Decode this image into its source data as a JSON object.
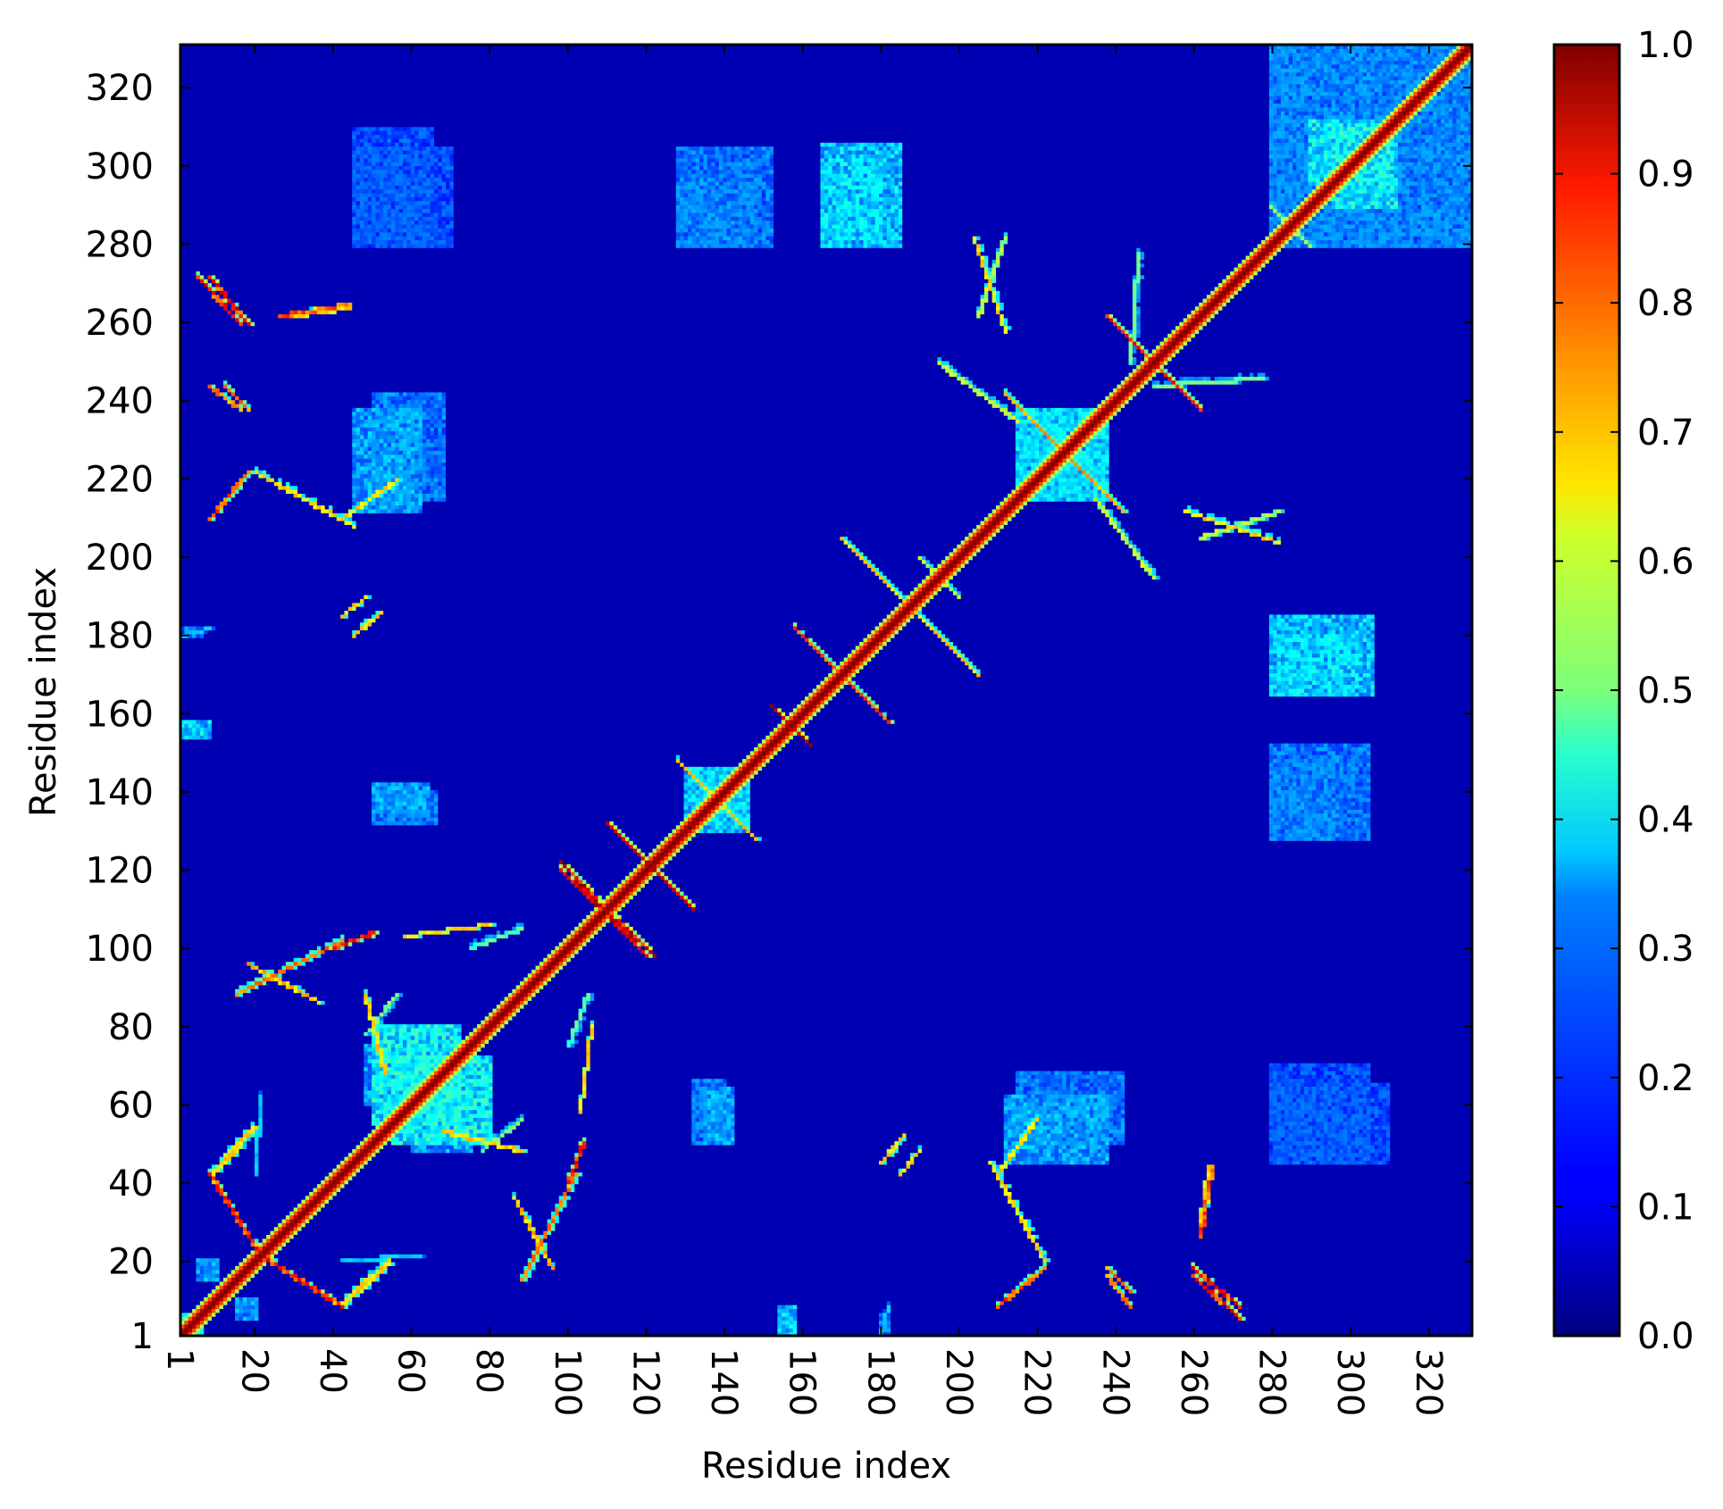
{
  "chart_data": {
    "type": "heatmap",
    "title": "",
    "xlabel": "Residue index",
    "ylabel": "Residue index",
    "n_residues": 331,
    "xlim": [
      1,
      331
    ],
    "ylim": [
      1,
      331
    ],
    "x_ticks": [
      1,
      20,
      40,
      60,
      80,
      100,
      120,
      140,
      160,
      180,
      200,
      220,
      240,
      260,
      280,
      300,
      320
    ],
    "y_ticks": [
      1,
      20,
      40,
      60,
      80,
      100,
      120,
      140,
      160,
      180,
      200,
      220,
      240,
      260,
      280,
      300,
      320
    ],
    "x_tick_rotation": "vertical",
    "colormap": "jet",
    "colorbar": {
      "range": [
        0.0,
        1.0
      ],
      "ticks": [
        "0.0",
        "0.1",
        "0.2",
        "0.3",
        "0.4",
        "0.5",
        "0.6",
        "0.7",
        "0.8",
        "0.9",
        "1.0"
      ],
      "position": "right"
    },
    "symmetric": true,
    "diagonal_value": 1.0,
    "background_value": 0.05,
    "features": [
      {
        "kind": "block",
        "x": [
          1,
          6
        ],
        "y": [
          1,
          6
        ],
        "value": 0.45
      },
      {
        "kind": "block",
        "x": [
          15,
          20
        ],
        "y": [
          5,
          10
        ],
        "value": 0.35
      },
      {
        "kind": "block",
        "x": [
          154,
          158
        ],
        "y": [
          1,
          8
        ],
        "value": 0.3
      },
      {
        "kind": "block",
        "x": [
          180,
          182
        ],
        "y": [
          1,
          6
        ],
        "value": 0.3
      },
      {
        "kind": "band",
        "from": [
          42,
          8
        ],
        "to": [
          54,
          19
        ],
        "value": 0.7
      },
      {
        "kind": "band",
        "from": [
          9,
          42
        ],
        "to": [
          20,
          54
        ],
        "value": 0.7
      },
      {
        "kind": "band",
        "from": [
          20,
          22
        ],
        "to": [
          42,
          8
        ],
        "value": 0.9
      },
      {
        "kind": "band",
        "from": [
          42,
          20
        ],
        "to": [
          62,
          21
        ],
        "value": 0.35
      },
      {
        "kind": "band",
        "from": [
          88,
          15
        ],
        "to": [
          102,
          42
        ],
        "value": 0.8
      },
      {
        "kind": "band",
        "from": [
          15,
          88
        ],
        "to": [
          42,
          102
        ],
        "value": 0.8
      },
      {
        "kind": "block",
        "x": [
          50,
          72
        ],
        "y": [
          55,
          80
        ],
        "value": 0.45
      },
      {
        "kind": "block",
        "x": [
          60,
          75
        ],
        "y": [
          48,
          62
        ],
        "value": 0.35
      },
      {
        "kind": "band",
        "from": [
          68,
          53
        ],
        "to": [
          88,
          48
        ],
        "value": 0.7
      },
      {
        "kind": "band",
        "from": [
          48,
          78
        ],
        "to": [
          56,
          88
        ],
        "value": 0.55
      },
      {
        "kind": "band",
        "from": [
          58,
          103
        ],
        "to": [
          80,
          106
        ],
        "value": 0.7
      },
      {
        "kind": "band",
        "from": [
          40,
          100
        ],
        "to": [
          50,
          104
        ],
        "value": 0.9
      },
      {
        "kind": "band",
        "from": [
          18,
          96
        ],
        "to": [
          36,
          86
        ],
        "value": 0.75
      },
      {
        "kind": "band",
        "from": [
          100,
          75
        ],
        "to": [
          105,
          88
        ],
        "value": 0.5
      },
      {
        "kind": "block",
        "x": [
          132,
          140
        ],
        "y": [
          50,
          64
        ],
        "value": 0.3
      },
      {
        "kind": "block",
        "x": [
          54,
          66
        ],
        "y": [
          132,
          140
        ],
        "value": 0.3
      },
      {
        "kind": "band",
        "from": [
          98,
          122
        ],
        "to": [
          120,
          98
        ],
        "value": 1.0
      },
      {
        "kind": "band",
        "from": [
          110,
          132
        ],
        "to": [
          132,
          110
        ],
        "value": 0.95
      },
      {
        "kind": "band",
        "from": [
          128,
          148
        ],
        "to": [
          148,
          128
        ],
        "value": 0.7
      },
      {
        "kind": "block",
        "x": [
          132,
          146
        ],
        "y": [
          130,
          146
        ],
        "value": 0.4
      },
      {
        "kind": "band",
        "from": [
          152,
          162
        ],
        "to": [
          162,
          152
        ],
        "value": 1.0
      },
      {
        "kind": "band",
        "from": [
          158,
          182
        ],
        "to": [
          182,
          158
        ],
        "value": 0.85
      },
      {
        "kind": "band",
        "from": [
          170,
          205
        ],
        "to": [
          205,
          170
        ],
        "value": 0.7
      },
      {
        "kind": "band",
        "from": [
          190,
          200
        ],
        "to": [
          200,
          190
        ],
        "value": 0.6
      },
      {
        "kind": "block",
        "x": [
          215,
          238
        ],
        "y": [
          215,
          238
        ],
        "value": 0.4
      },
      {
        "kind": "band",
        "from": [
          212,
          242
        ],
        "to": [
          242,
          212
        ],
        "value": 0.75
      },
      {
        "kind": "band",
        "from": [
          195,
          250
        ],
        "to": [
          215,
          235
        ],
        "value": 0.6
      },
      {
        "kind": "band",
        "from": [
          235,
          215
        ],
        "to": [
          250,
          195
        ],
        "value": 0.6
      },
      {
        "kind": "band",
        "from": [
          238,
          262
        ],
        "to": [
          262,
          238
        ],
        "value": 0.9
      },
      {
        "kind": "band",
        "from": [
          250,
          244
        ],
        "to": [
          278,
          246
        ],
        "value": 0.5
      },
      {
        "kind": "band",
        "from": [
          244,
          250
        ],
        "to": [
          246,
          278
        ],
        "value": 0.5
      },
      {
        "kind": "band",
        "from": [
          8,
          272
        ],
        "to": [
          18,
          260
        ],
        "value": 0.95
      },
      {
        "kind": "band",
        "from": [
          8,
          244
        ],
        "to": [
          16,
          238
        ],
        "value": 0.8
      },
      {
        "kind": "band",
        "from": [
          8,
          210
        ],
        "to": [
          18,
          222
        ],
        "value": 0.85
      },
      {
        "kind": "band",
        "from": [
          42,
          210
        ],
        "to": [
          56,
          220
        ],
        "value": 0.7
      },
      {
        "kind": "block",
        "x": [
          50,
          68
        ],
        "y": [
          215,
          242
        ],
        "value": 0.3
      },
      {
        "kind": "band",
        "from": [
          26,
          262
        ],
        "to": [
          44,
          265
        ],
        "value": 0.85
      },
      {
        "kind": "band",
        "from": [
          1,
          180
        ],
        "to": [
          8,
          182
        ],
        "value": 0.35
      },
      {
        "kind": "block",
        "x": [
          1,
          8
        ],
        "y": [
          154,
          158
        ],
        "value": 0.4
      },
      {
        "kind": "block",
        "x": [
          50,
          64
        ],
        "y": [
          135,
          142
        ],
        "value": 0.35
      },
      {
        "kind": "band",
        "from": [
          42,
          185
        ],
        "to": [
          48,
          190
        ],
        "value": 0.7
      },
      {
        "kind": "band",
        "from": [
          208,
          45
        ],
        "to": [
          222,
          20
        ],
        "value": 0.7
      },
      {
        "kind": "block",
        "x": [
          212,
          238
        ],
        "y": [
          45,
          62
        ],
        "value": 0.35
      },
      {
        "kind": "band",
        "from": [
          238,
          18
        ],
        "to": [
          244,
          12
        ],
        "value": 0.85
      },
      {
        "kind": "band",
        "from": [
          260,
          16
        ],
        "to": [
          272,
          5
        ],
        "value": 0.95
      },
      {
        "kind": "band",
        "from": [
          262,
          30
        ],
        "to": [
          264,
          44
        ],
        "value": 0.7
      },
      {
        "kind": "band",
        "from": [
          180,
          45
        ],
        "to": [
          186,
          52
        ],
        "value": 0.7
      },
      {
        "kind": "block",
        "x": [
          128,
          152
        ],
        "y": [
          280,
          305
        ],
        "value": 0.3
      },
      {
        "kind": "block",
        "x": [
          165,
          185
        ],
        "y": [
          280,
          306
        ],
        "value": 0.4
      },
      {
        "kind": "block",
        "x": [
          45,
          70
        ],
        "y": [
          280,
          305
        ],
        "value": 0.25
      },
      {
        "kind": "block",
        "x": [
          282,
          302
        ],
        "y": [
          165,
          180
        ],
        "value": 0.4
      },
      {
        "kind": "block",
        "x": [
          280,
          296
        ],
        "y": [
          128,
          148
        ],
        "value": 0.3
      },
      {
        "kind": "block",
        "x": [
          280,
          310
        ],
        "y": [
          45,
          65
        ],
        "value": 0.25
      },
      {
        "kind": "band",
        "from": [
          204,
          282
        ],
        "to": [
          212,
          258
        ],
        "value": 0.7
      },
      {
        "kind": "band",
        "from": [
          262,
          205
        ],
        "to": [
          282,
          212
        ],
        "value": 0.6
      },
      {
        "kind": "block",
        "x": [
          280,
          331
        ],
        "y": [
          280,
          331
        ],
        "value": 0.3
      },
      {
        "kind": "block",
        "x": [
          296,
          312
        ],
        "y": [
          290,
          310
        ],
        "value": 0.45
      },
      {
        "kind": "band",
        "from": [
          280,
          290
        ],
        "to": [
          290,
          280
        ],
        "value": 0.6
      }
    ]
  }
}
